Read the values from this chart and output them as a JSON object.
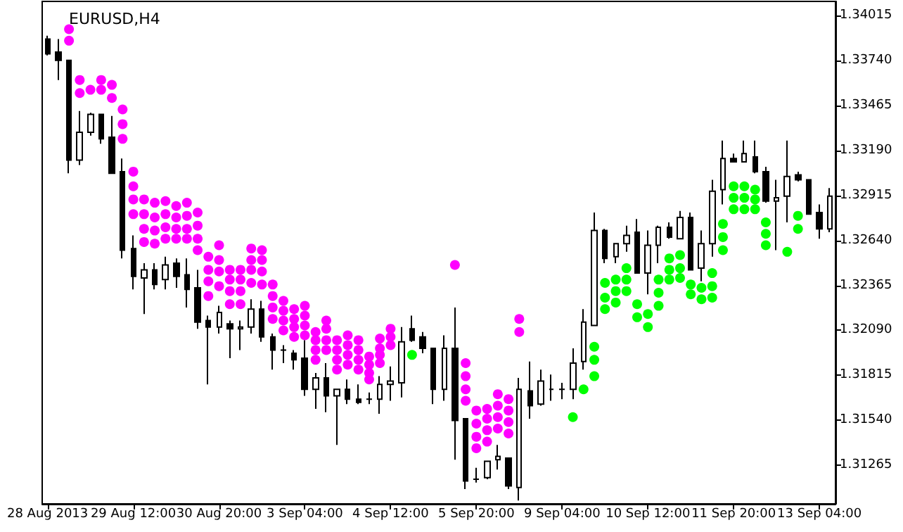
{
  "chart_data": {
    "type": "candlestick",
    "title": "EURUSD,H4",
    "categories": [
      "28 Aug 2013",
      null,
      null,
      null,
      null,
      null,
      null,
      null,
      "29 Aug 12:00",
      null,
      null,
      null,
      null,
      null,
      null,
      null,
      "30 Aug 20:00",
      null,
      null,
      null,
      null,
      null,
      null,
      null,
      "3 Sep 04:00",
      null,
      null,
      null,
      null,
      null,
      null,
      null,
      "4 Sep 12:00",
      null,
      null,
      null,
      null,
      null,
      null,
      null,
      "5 Sep 20:00",
      null,
      null,
      null,
      null,
      null,
      null,
      null,
      "9 Sep 04:00",
      null,
      null,
      null,
      null,
      null,
      null,
      null,
      "10 Sep 12:00",
      null,
      null,
      null,
      null,
      null,
      null,
      null,
      "11 Sep 20:00",
      null,
      null,
      null,
      null,
      null,
      null,
      null,
      "13 Sep 04:00",
      null
    ],
    "ohlc": [
      [
        1.3387,
        1.3389,
        1.3377,
        1.3378
      ],
      [
        1.3379,
        1.3387,
        1.3362,
        1.3374
      ],
      [
        1.3374,
        1.3374,
        1.3305,
        1.3313
      ],
      [
        1.3313,
        1.3343,
        1.331,
        1.333
      ],
      [
        1.333,
        1.3342,
        1.3328,
        1.3341
      ],
      [
        1.3341,
        1.3341,
        1.3323,
        1.3326
      ],
      [
        1.3327,
        1.334,
        1.3305,
        1.3305
      ],
      [
        1.3306,
        1.3314,
        1.3253,
        1.3258
      ],
      [
        1.3259,
        1.3267,
        1.3234,
        1.3242
      ],
      [
        1.3241,
        1.325,
        1.3219,
        1.3246
      ],
      [
        1.3246,
        1.325,
        1.3234,
        1.3237
      ],
      [
        1.324,
        1.3254,
        1.3234,
        1.3249
      ],
      [
        1.325,
        1.3253,
        1.3235,
        1.3242
      ],
      [
        1.3243,
        1.3253,
        1.3223,
        1.3234
      ],
      [
        1.3235,
        1.3246,
        1.321,
        1.3214
      ],
      [
        1.3215,
        1.3218,
        1.3176,
        1.3211
      ],
      [
        1.3211,
        1.3224,
        1.3207,
        1.322
      ],
      [
        1.3213,
        1.3215,
        1.3192,
        1.321
      ],
      [
        1.321,
        1.3215,
        1.3197,
        1.3211
      ],
      [
        1.3211,
        1.3228,
        1.3207,
        1.3222
      ],
      [
        1.3222,
        1.3227,
        1.3202,
        1.3205
      ],
      [
        1.3205,
        1.3207,
        1.3185,
        1.3197
      ],
      [
        1.3197,
        1.32,
        1.3189,
        1.3197
      ],
      [
        1.3195,
        1.3197,
        1.3185,
        1.3191
      ],
      [
        1.3192,
        1.3203,
        1.3169,
        1.3173
      ],
      [
        1.3173,
        1.3183,
        1.3161,
        1.318
      ],
      [
        1.318,
        1.3189,
        1.3159,
        1.3169
      ],
      [
        1.3169,
        1.3173,
        1.3139,
        1.3173
      ],
      [
        1.3173,
        1.3179,
        1.3164,
        1.3167
      ],
      [
        1.3167,
        1.3176,
        1.3164,
        1.3165
      ],
      [
        1.3167,
        1.3171,
        1.3164,
        1.3167
      ],
      [
        1.3167,
        1.3181,
        1.3158,
        1.3176
      ],
      [
        1.3176,
        1.3187,
        1.3166,
        1.3178
      ],
      [
        1.3177,
        1.3211,
        1.3168,
        1.3202
      ],
      [
        1.321,
        1.3218,
        1.3202,
        1.3203
      ],
      [
        1.3205,
        1.3208,
        1.3195,
        1.3198
      ],
      [
        1.3198,
        1.3198,
        1.3164,
        1.3173
      ],
      [
        1.3173,
        1.3206,
        1.3166,
        1.3198
      ],
      [
        1.3198,
        1.3223,
        1.313,
        1.3154
      ],
      [
        1.3155,
        1.3155,
        1.3112,
        1.3117
      ],
      [
        1.3118,
        1.3125,
        1.3116,
        1.3118
      ],
      [
        1.3119,
        1.3129,
        1.3118,
        1.3129
      ],
      [
        1.313,
        1.3139,
        1.3124,
        1.3132
      ],
      [
        1.3131,
        1.3131,
        1.3112,
        1.3114
      ],
      [
        1.3113,
        1.318,
        1.3105,
        1.3173
      ],
      [
        1.3172,
        1.319,
        1.3155,
        1.3163
      ],
      [
        1.3164,
        1.3185,
        1.3163,
        1.3178
      ],
      [
        1.3173,
        1.3182,
        1.3166,
        1.3173
      ],
      [
        1.3173,
        1.3177,
        1.3167,
        1.3173
      ],
      [
        1.3173,
        1.3198,
        1.3167,
        1.3189
      ],
      [
        1.319,
        1.3222,
        1.3185,
        1.3214
      ],
      [
        1.3212,
        1.3281,
        1.3212,
        1.327
      ],
      [
        1.327,
        1.3271,
        1.325,
        1.3253
      ],
      [
        1.3254,
        1.3262,
        1.325,
        1.3262
      ],
      [
        1.3262,
        1.3273,
        1.3257,
        1.3267
      ],
      [
        1.3269,
        1.3277,
        1.3244,
        1.3244
      ],
      [
        1.3244,
        1.327,
        1.3231,
        1.3261
      ],
      [
        1.3261,
        1.3273,
        1.325,
        1.3272
      ],
      [
        1.3272,
        1.3275,
        1.3265,
        1.3266
      ],
      [
        1.3265,
        1.3282,
        1.3265,
        1.3278
      ],
      [
        1.3278,
        1.3281,
        1.3246,
        1.3246
      ],
      [
        1.3247,
        1.327,
        1.3239,
        1.3262
      ],
      [
        1.3262,
        1.3301,
        1.3254,
        1.3294
      ],
      [
        1.3295,
        1.3325,
        1.3286,
        1.3314
      ],
      [
        1.3314,
        1.3317,
        1.3312,
        1.3312
      ],
      [
        1.3312,
        1.3325,
        1.3312,
        1.3317
      ],
      [
        1.3315,
        1.3325,
        1.3305,
        1.3306
      ],
      [
        1.3306,
        1.3309,
        1.3287,
        1.3288
      ],
      [
        1.3288,
        1.3301,
        1.3258,
        1.329
      ],
      [
        1.3291,
        1.3325,
        1.3275,
        1.3303
      ],
      [
        1.3304,
        1.3306,
        1.33,
        1.3301
      ],
      [
        1.3301,
        1.3301,
        1.328,
        1.328
      ],
      [
        1.3281,
        1.3286,
        1.3265,
        1.3271
      ],
      [
        1.3271,
        1.3296,
        1.3269,
        1.3291
      ]
    ],
    "series": [
      {
        "type": "scatter",
        "color": "#ff00ff",
        "values": [
          null,
          null,
          1.3393,
          1.3362,
          1.3356,
          1.3362,
          1.3359,
          1.3344,
          1.3306,
          1.3289,
          1.3287,
          1.3288,
          1.3285,
          1.3287,
          1.3281,
          1.3254,
          1.3261,
          1.3246,
          1.3246,
          1.3259,
          1.3258,
          1.3237,
          1.3227,
          1.3222,
          1.3224,
          1.3208,
          1.3215,
          1.3203,
          1.3206,
          1.3203,
          1.3193,
          1.3204,
          1.321,
          null,
          null,
          null,
          null,
          null,
          1.3249,
          1.3189,
          1.316,
          1.3161,
          1.317,
          1.3167,
          1.3216,
          null,
          null,
          null,
          null,
          null,
          null,
          null,
          null,
          null,
          null,
          null,
          null,
          null,
          null,
          null,
          null,
          null,
          null,
          null,
          null,
          null,
          null,
          null,
          null,
          null,
          null,
          null,
          null,
          null
        ]
      },
      {
        "type": "scatter",
        "color": "#ff00ff",
        "values": [
          null,
          null,
          1.3386,
          1.3354,
          null,
          1.3356,
          1.3351,
          1.3335,
          1.3297,
          1.328,
          1.3278,
          1.328,
          1.3278,
          1.3279,
          1.3273,
          1.3246,
          1.3252,
          1.324,
          1.324,
          1.3252,
          1.3252,
          1.323,
          1.3221,
          1.3216,
          1.3218,
          1.3203,
          1.321,
          1.3197,
          1.32,
          1.3197,
          1.3188,
          1.3198,
          1.3205,
          null,
          null,
          null,
          null,
          null,
          null,
          1.3181,
          1.3152,
          1.3155,
          1.3163,
          1.316,
          1.3208,
          null,
          null,
          null,
          null,
          null,
          null,
          null,
          null,
          null,
          null,
          null,
          null,
          null,
          null,
          null,
          null,
          null,
          null,
          null,
          null,
          null,
          null,
          null,
          null,
          null,
          null,
          null,
          null,
          null
        ]
      },
      {
        "type": "scatter",
        "color": "#ff00ff",
        "values": [
          null,
          null,
          null,
          null,
          null,
          null,
          null,
          1.3326,
          1.3289,
          1.3271,
          1.327,
          1.3272,
          1.3271,
          1.3271,
          1.3265,
          1.3239,
          1.3245,
          1.3233,
          1.3233,
          1.3246,
          1.3245,
          1.3223,
          1.3215,
          1.3211,
          1.3212,
          1.3197,
          1.3203,
          1.3191,
          1.3194,
          1.3191,
          1.3183,
          1.3194,
          1.32,
          null,
          null,
          null,
          null,
          null,
          null,
          1.3173,
          1.3144,
          1.3148,
          1.3156,
          1.3153,
          null,
          null,
          null,
          null,
          null,
          null,
          null,
          null,
          null,
          null,
          null,
          null,
          null,
          null,
          null,
          null,
          null,
          null,
          null,
          null,
          null,
          null,
          null,
          null,
          null,
          null,
          null,
          null,
          null,
          null
        ]
      },
      {
        "type": "scatter",
        "color": "#ff00ff",
        "values": [
          null,
          null,
          null,
          null,
          null,
          null,
          null,
          null,
          1.328,
          1.3263,
          1.3262,
          1.3265,
          1.3265,
          1.3265,
          1.3258,
          1.323,
          1.3236,
          1.3225,
          1.3225,
          1.3238,
          1.3237,
          1.3216,
          1.3209,
          1.3205,
          1.3206,
          1.3191,
          1.3197,
          1.3185,
          1.3188,
          1.3185,
          1.3179,
          1.3189,
          null,
          null,
          null,
          null,
          null,
          null,
          null,
          1.3166,
          1.3137,
          1.3141,
          1.3149,
          1.3146,
          null,
          null,
          null,
          null,
          null,
          null,
          null,
          null,
          null,
          null,
          null,
          null,
          null,
          null,
          null,
          null,
          null,
          null,
          null,
          null,
          null,
          null,
          null,
          null,
          null,
          null,
          null,
          null,
          null,
          null
        ]
      },
      {
        "type": "scatter",
        "color": "#00ff00",
        "values": [
          null,
          null,
          null,
          null,
          null,
          null,
          null,
          null,
          null,
          null,
          null,
          null,
          null,
          null,
          null,
          null,
          null,
          null,
          null,
          null,
          null,
          null,
          null,
          null,
          null,
          null,
          null,
          null,
          null,
          null,
          null,
          null,
          null,
          null,
          1.3194,
          null,
          null,
          null,
          null,
          null,
          null,
          null,
          null,
          null,
          null,
          null,
          null,
          null,
          null,
          1.3156,
          1.3173,
          1.3199,
          1.3238,
          1.324,
          1.3247,
          1.3225,
          1.3219,
          1.324,
          1.3253,
          1.3255,
          1.3237,
          1.3235,
          1.3244,
          1.3274,
          1.3297,
          1.3297,
          1.3295,
          1.3275,
          null,
          1.3257,
          1.3279,
          null,
          null,
          null
        ]
      },
      {
        "type": "scatter",
        "color": "#00ff00",
        "values": [
          null,
          null,
          null,
          null,
          null,
          null,
          null,
          null,
          null,
          null,
          null,
          null,
          null,
          null,
          null,
          null,
          null,
          null,
          null,
          null,
          null,
          null,
          null,
          null,
          null,
          null,
          null,
          null,
          null,
          null,
          null,
          null,
          null,
          null,
          null,
          null,
          null,
          null,
          null,
          null,
          null,
          null,
          null,
          null,
          null,
          null,
          null,
          null,
          null,
          null,
          null,
          1.3191,
          1.3229,
          1.3233,
          1.324,
          1.3217,
          1.3211,
          1.3232,
          1.3246,
          1.3247,
          1.3231,
          1.3228,
          1.3236,
          1.3266,
          1.329,
          1.329,
          1.3289,
          1.3268,
          null,
          null,
          1.3271,
          null,
          null,
          null
        ]
      },
      {
        "type": "scatter",
        "color": "#00ff00",
        "values": [
          null,
          null,
          null,
          null,
          null,
          null,
          null,
          null,
          null,
          null,
          null,
          null,
          null,
          null,
          null,
          null,
          null,
          null,
          null,
          null,
          null,
          null,
          null,
          null,
          null,
          null,
          null,
          null,
          null,
          null,
          null,
          null,
          null,
          null,
          null,
          null,
          null,
          null,
          null,
          null,
          null,
          null,
          null,
          null,
          null,
          null,
          null,
          null,
          null,
          null,
          null,
          1.3181,
          1.3222,
          1.3226,
          1.3233,
          null,
          null,
          1.3224,
          1.324,
          1.3241,
          null,
          null,
          1.3229,
          1.3258,
          1.3283,
          1.3283,
          1.3283,
          1.3261,
          null,
          null,
          null,
          null,
          null,
          null
        ]
      }
    ],
    "marker": "circle",
    "ylim": [
      1.3103,
      1.341
    ],
    "yticks": [
      1.31265,
      {
        "value": 1.3154,
        "label": "1.31540"
      },
      1.31815,
      {
        "value": 1.3209,
        "label": "1.32090"
      },
      1.32365,
      {
        "value": 1.3264,
        "label": "1.32640"
      },
      1.32915,
      {
        "value": 1.3319,
        "label": "1.33190"
      },
      1.33465,
      {
        "value": 1.3374,
        "label": "1.33740"
      },
      1.34015
    ]
  }
}
